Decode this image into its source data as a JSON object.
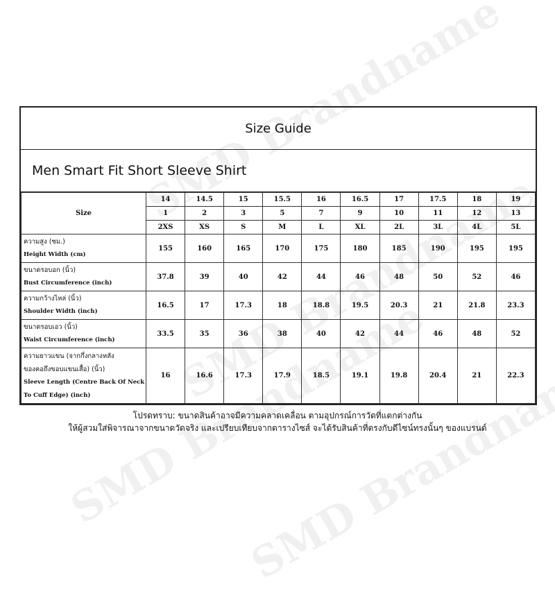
{
  "watermark": "SMD Brandname",
  "title": "Size Guide",
  "subtitle": "Men Smart Fit Short Sleeve Shirt",
  "size_label": "Size",
  "size_rows": [
    [
      "14",
      "14.5",
      "15",
      "15.5",
      "16",
      "16.5",
      "17",
      "17.5",
      "18",
      "19"
    ],
    [
      "1",
      "2",
      "3",
      "5",
      "7",
      "9",
      "10",
      "11",
      "12",
      "13"
    ],
    [
      "2XS",
      "XS",
      "S",
      "M",
      "L",
      "XL",
      "2L",
      "3L",
      "4L",
      "5L"
    ]
  ],
  "measurements": [
    {
      "label_th": [
        "ความสูง (ซม.)"
      ],
      "label_en": [
        "Height Width (cm)"
      ],
      "values": [
        "155",
        "160",
        "165",
        "170",
        "175",
        "180",
        "185",
        "190",
        "195",
        "195"
      ]
    },
    {
      "label_th": [
        "ขนาดรอบอก (นิ้ว)"
      ],
      "label_en": [
        "Bust Circumference (inch)"
      ],
      "values": [
        "37.8",
        "39",
        "40",
        "42",
        "44",
        "46",
        "48",
        "50",
        "52",
        "46"
      ]
    },
    {
      "label_th": [
        "ความกว้างไหล่ (นิ้ว)"
      ],
      "label_en": [
        "Shoulder Width (inch)"
      ],
      "values": [
        "16.5",
        "17",
        "17.3",
        "18",
        "18.8",
        "19.5",
        "20.3",
        "21",
        "21.8",
        "23.3"
      ]
    },
    {
      "label_th": [
        "ขนาดรอบเอว (นิ้ว)"
      ],
      "label_en": [
        "Waist Circumference (inch)"
      ],
      "values": [
        "33.5",
        "35",
        "36",
        "38",
        "40",
        "42",
        "44",
        "46",
        "48",
        "52"
      ]
    },
    {
      "label_th": [
        "ความยาวแขน (จากกึ่งกลางหลัง",
        "ของคอถึงขอบแขนเสื้อ) (นิ้ว)"
      ],
      "label_en": [
        "Sleeve Length (Centre Back Of Neck",
        "To Cuff Edge) (inch)"
      ],
      "values": [
        "16",
        "16.6",
        "17.3",
        "17.9",
        "18.5",
        "19.1",
        "19.8",
        "20.4",
        "21",
        "22.3"
      ]
    }
  ],
  "notes": [
    "โปรดทราบ: ขนาดสินค้าอาจมีความคลาดเคลื่อน ตามอุปกรณ์การวัดที่แตกต่างกัน",
    "ให้ผู้สวมใส่พิจารณาจากขนาดวัดจริง และเปรียบเทียบจากตารางไซส์ จะได้รับสินค้าที่ตรงกับดีไซน์ทรงนั้นๆ ของแบรนด์"
  ]
}
